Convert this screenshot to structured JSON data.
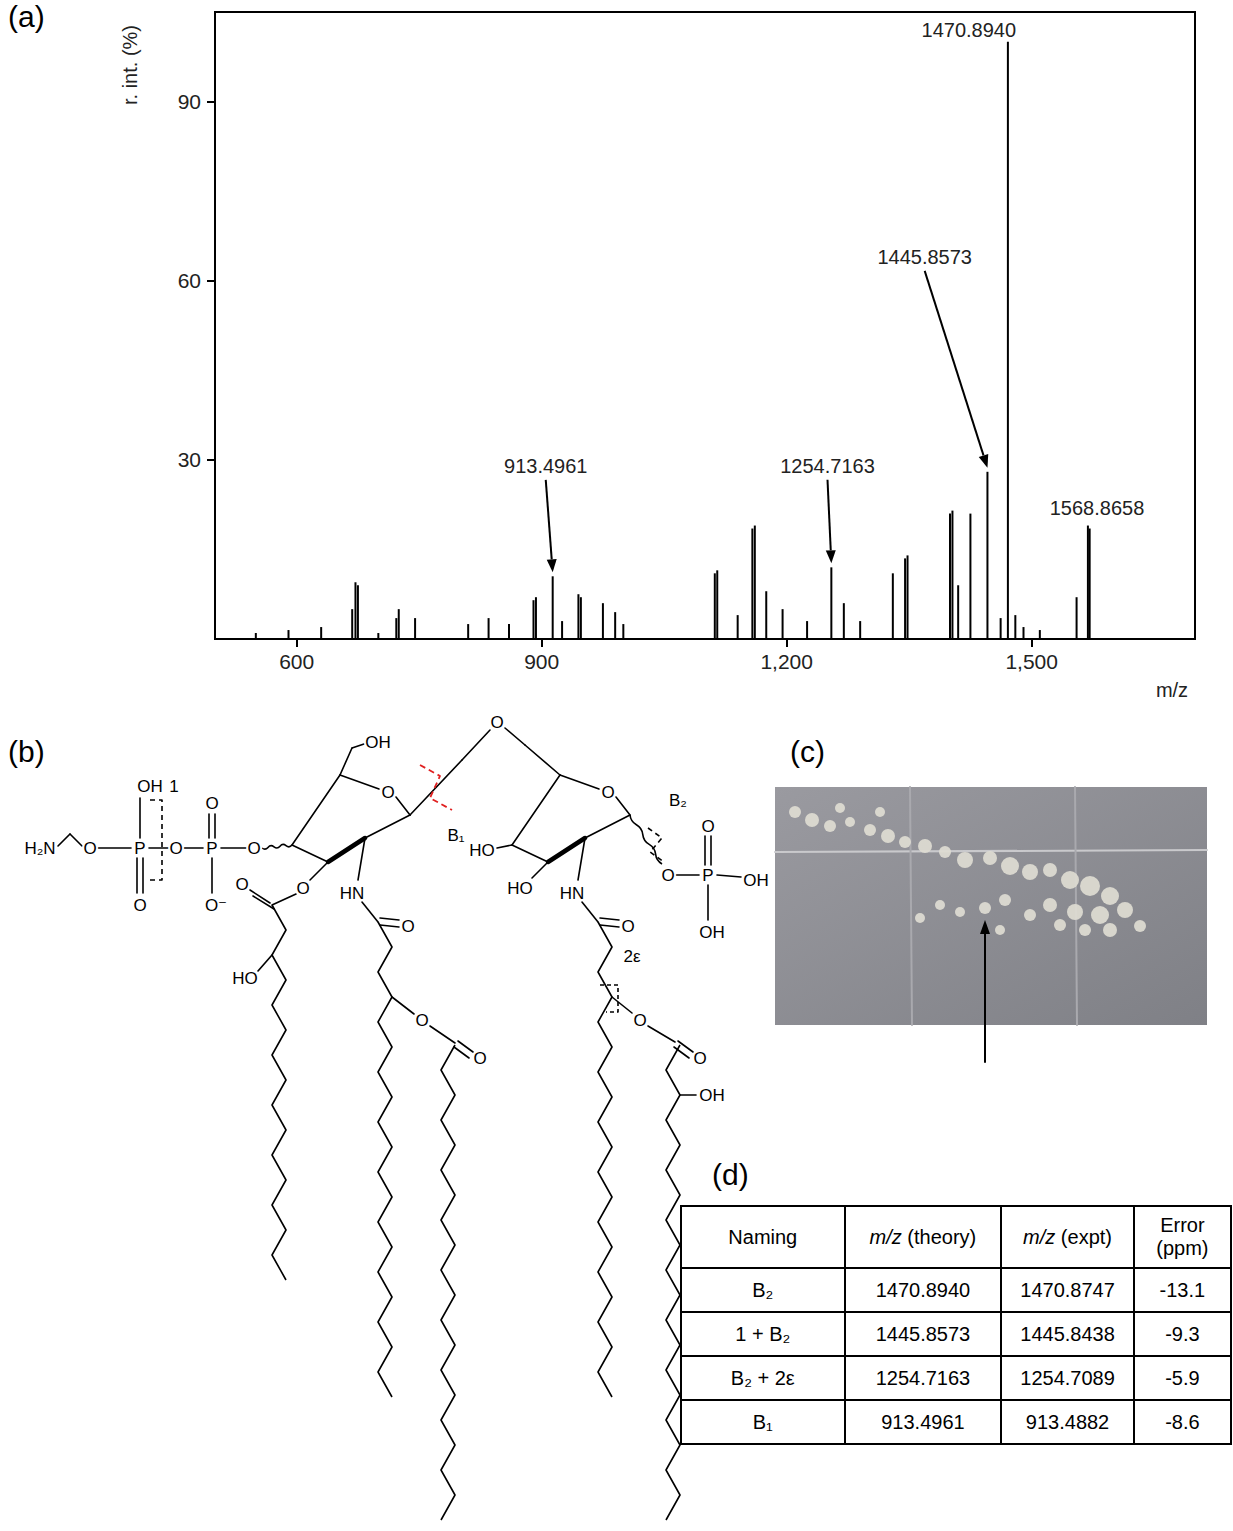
{
  "panel_labels": [
    "(a)",
    "(b)",
    "(c)",
    "(d)"
  ],
  "chart_data": {
    "type": "bar",
    "xlabel": "m/z",
    "ylabel": "r. int. (%)",
    "color": "#000000",
    "grid": false,
    "xlim": [
      500,
      1700
    ],
    "xticks": [
      600,
      900,
      1200,
      1500
    ],
    "ylim": [
      0,
      105
    ],
    "yticks": [
      30,
      60,
      90
    ],
    "x": [
      550,
      590,
      630,
      668,
      672,
      675,
      700,
      722,
      725,
      745,
      810,
      835,
      860,
      890,
      893,
      913.4961,
      925,
      945,
      948,
      975,
      990,
      1000,
      1112,
      1115,
      1140,
      1158,
      1161,
      1175,
      1195,
      1225,
      1254.7163,
      1270,
      1290,
      1330,
      1345,
      1348,
      1400,
      1403,
      1410,
      1425,
      1445.8573,
      1462,
      1470.894,
      1480,
      1490,
      1510,
      1555,
      1568.8658,
      1571
    ],
    "values": [
      1,
      1.5,
      2,
      5,
      9.5,
      9,
      1,
      3.5,
      5,
      3.5,
      2.5,
      3.5,
      2.5,
      6.5,
      7,
      10.5,
      3,
      7.5,
      7,
      6,
      4.5,
      2.5,
      11,
      11.5,
      4,
      18.5,
      19,
      8,
      5,
      3,
      12,
      6,
      3,
      11,
      13.5,
      14,
      21,
      21.5,
      9,
      21,
      28,
      3.5,
      100,
      4,
      2,
      1.5,
      7,
      19,
      18.5
    ],
    "annotations": [
      {
        "text": "1470.8940",
        "peak": [
          1470.894,
          100
        ],
        "label_at": [
          1423,
          102
        ],
        "arrow": false
      },
      {
        "text": "1445.8573",
        "peak": [
          1445.8573,
          28
        ],
        "label_at": [
          1369,
          64
        ],
        "arrow": true
      },
      {
        "text": "913.4961",
        "peak": [
          913.4961,
          10.5
        ],
        "label_at": [
          905,
          29
        ],
        "arrow": true
      },
      {
        "text": "1254.7163",
        "peak": [
          1254.7163,
          12
        ],
        "label_at": [
          1250,
          29
        ],
        "arrow": true
      },
      {
        "text": "1568.8658",
        "peak": [
          1568.8658,
          19
        ],
        "label_at": [
          1580,
          22
        ],
        "arrow": false
      }
    ]
  },
  "structure": {
    "labels": [
      "H₂N",
      "O",
      "P",
      "OH",
      "O",
      "O",
      "P",
      "O",
      "O⁻",
      "O",
      "OH",
      "O",
      "O",
      "O",
      "HO",
      "HN",
      "O",
      "O",
      "O",
      "O",
      "O",
      "HO",
      "HO",
      "HN",
      "O",
      "2ε",
      "O",
      "O",
      "OH",
      "O",
      "P",
      "O",
      "OH",
      "OH",
      "B₁",
      "B₂",
      "1"
    ]
  },
  "table": {
    "header": [
      "Naming",
      "m/z (theory)",
      "m/z (expt)",
      "Error (ppm)"
    ],
    "rows": [
      [
        "B₂",
        "1470.8940",
        "1470.8747",
        "-13.1"
      ],
      [
        "1 + B₂",
        "1445.8573",
        "1445.8438",
        "-9.3"
      ],
      [
        "B₂ + 2ε",
        "1254.7163",
        "1254.7089",
        "-5.9"
      ],
      [
        "B₁",
        "913.4961",
        "913.4882",
        "-8.6"
      ]
    ]
  }
}
